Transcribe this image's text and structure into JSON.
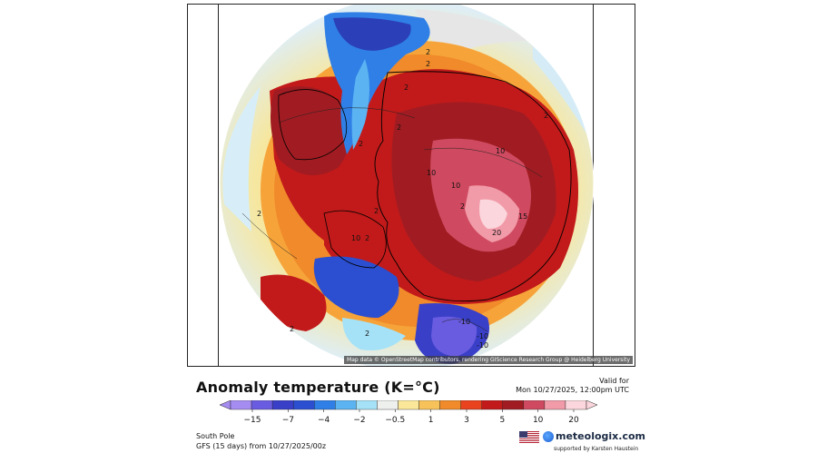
{
  "map": {
    "attribution": "Map data © OpenStreetMap contributors, rendering GIScience Research Group @ Heidelberg University",
    "contour_labels": [
      "2",
      "2",
      "2",
      "2",
      "2",
      "2",
      "2",
      "2",
      "2",
      "2",
      "2",
      "2",
      "10",
      "10",
      "10",
      "10",
      "15",
      "20",
      "-10",
      "-10",
      "-10"
    ]
  },
  "header": {
    "title": "Anomaly temperature (K=°C)",
    "valid_label": "Valid for",
    "valid_time": "Mon 10/27/2025, 12:00pm UTC"
  },
  "legend": {
    "ticks": [
      "−15",
      "−7",
      "−4",
      "−2",
      "−0.5",
      "1",
      "3",
      "5",
      "10",
      "20"
    ],
    "colors": [
      "#a58cf0",
      "#6a5ce0",
      "#3a3fc8",
      "#2b4fd0",
      "#2f7fe6",
      "#5bb3f2",
      "#a6e2f7",
      "#eef0ee",
      "#fbe79a",
      "#f7c25a",
      "#f08a2a",
      "#e8421f",
      "#c21a1a",
      "#a01c22",
      "#cf4a60",
      "#f19aa8",
      "#fbd6dc"
    ]
  },
  "footer": {
    "region": "South Pole",
    "model_run": "GFS (15 days)  from  10/27/2025/00z"
  },
  "brand": {
    "site": "meteologix.com",
    "supported_by": "supported by Karsten Haustein"
  }
}
